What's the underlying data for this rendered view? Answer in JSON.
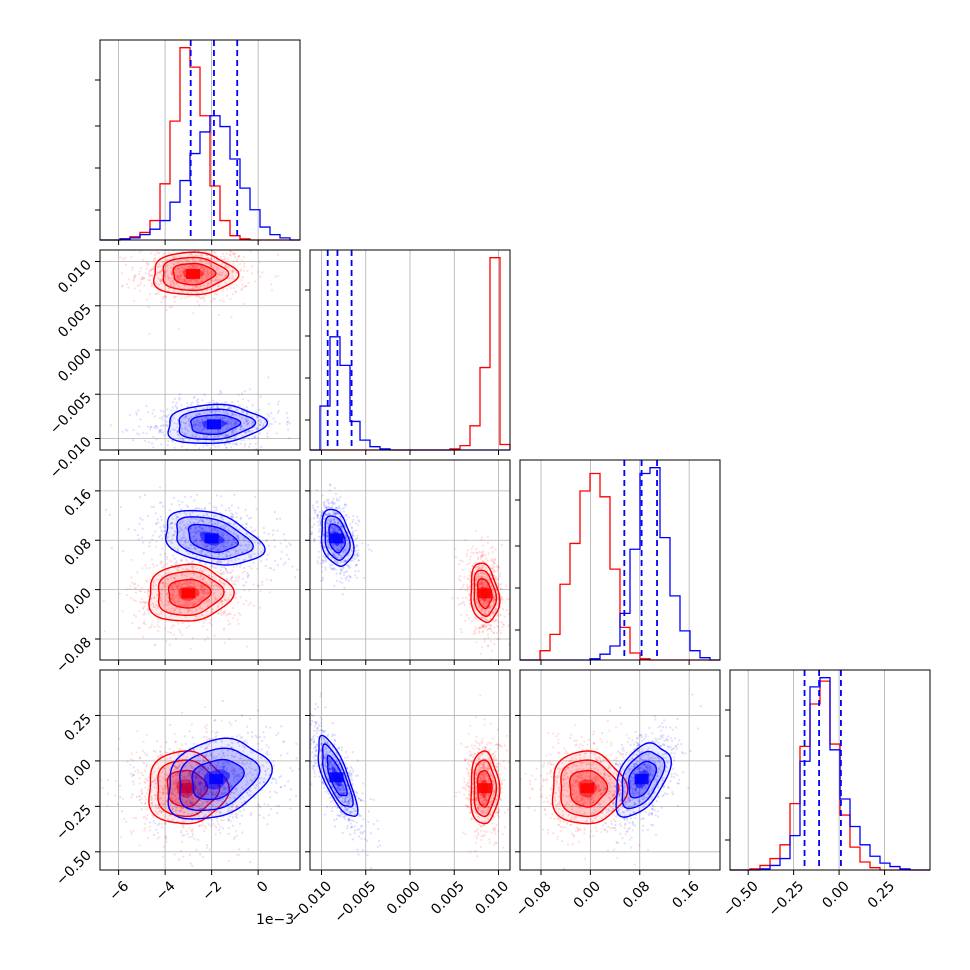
{
  "chart_data": {
    "type": "corner",
    "grid": true,
    "colors": {
      "red": "#ff0000",
      "blue": "#0000ff",
      "grid": "#b0b0b0"
    },
    "variables": [
      {
        "range": [
          -6.8,
          1.8
        ],
        "ticks": [
          -6,
          -4,
          -2,
          0
        ],
        "tick_labels": [
          "−6",
          "−4",
          "−2",
          "0"
        ],
        "offset_label": "1e−3"
      },
      {
        "range": [
          -0.0113,
          0.0113
        ],
        "ticks": [
          -0.01,
          -0.005,
          0.0,
          0.005,
          0.01
        ],
        "tick_labels": [
          "−0.010",
          "−0.005",
          "0.000",
          "0.005",
          "0.010"
        ]
      },
      {
        "range": [
          -0.114,
          0.21
        ],
        "ticks": [
          -0.08,
          0.0,
          0.08,
          0.16
        ],
        "tick_labels": [
          "−0.08",
          "0.00",
          "0.08",
          "0.16"
        ]
      },
      {
        "range": [
          -0.6,
          0.5
        ],
        "ticks": [
          -0.5,
          -0.25,
          0.0,
          0.25
        ],
        "tick_labels": [
          "−0.50",
          "−0.25",
          "0.00",
          "0.25"
        ]
      }
    ],
    "quantiles_blue": [
      [
        -2.9,
        -1.9,
        -0.9
      ],
      [
        -0.0093,
        -0.0082,
        -0.0066
      ],
      [
        0.055,
        0.083,
        0.108
      ],
      [
        -0.19,
        -0.11,
        0.01
      ]
    ],
    "series": [
      {
        "color": "red",
        "marginal_bins": [
          {
            "edges": [
              -6.8,
              -6.37,
              -5.94,
              -5.51,
              -5.08,
              -4.65,
              -4.22,
              -3.79,
              -3.36,
              -2.93,
              -2.5,
              -2.07,
              -1.64,
              -1.21,
              -0.78,
              -0.35,
              0.08,
              0.51,
              0.94,
              1.37,
              1.8
            ],
            "counts": [
              0,
              0,
              1,
              3,
              7,
              18,
              52,
              110,
              178,
              160,
              115,
              50,
              18,
              4,
              1,
              0,
              0,
              0,
              0,
              0
            ]
          },
          {
            "edges": [
              -0.0113,
              -0.01017,
              -0.00904,
              -0.00791,
              -0.00678,
              -0.00565,
              -0.00452,
              -0.00339,
              -0.00226,
              -0.00113,
              0.0,
              0.00113,
              0.00226,
              0.00339,
              0.00452,
              0.00565,
              0.00678,
              0.00791,
              0.00904,
              0.01017,
              0.0113
            ],
            "counts": [
              0,
              0,
              0,
              0,
              0,
              0,
              0,
              0,
              0,
              0,
              0,
              0,
              0,
              0,
              1,
              4,
              22,
              75,
              175,
              5
            ]
          },
          {
            "edges": [
              -0.114,
              -0.0978,
              -0.0816,
              -0.0654,
              -0.0492,
              -0.033,
              -0.0168,
              -0.0006,
              0.0156,
              0.0318,
              0.048,
              0.0642,
              0.0804,
              0.0966,
              0.1128,
              0.129,
              0.1452,
              0.1614,
              0.1776,
              0.1938,
              0.21
            ],
            "counts": [
              0,
              0,
              8,
              22,
              65,
              100,
              145,
              160,
              140,
              78,
              28,
              6,
              1,
              0,
              0,
              0,
              0,
              0,
              0,
              0
            ]
          },
          {
            "edges": [
              -0.6,
              -0.545,
              -0.49,
              -0.435,
              -0.38,
              -0.325,
              -0.27,
              -0.215,
              -0.16,
              -0.105,
              -0.05,
              0.005,
              0.06,
              0.115,
              0.17,
              0.225,
              0.28,
              0.335,
              0.39,
              0.445,
              0.5
            ],
            "counts": [
              0,
              0,
              1,
              4,
              10,
              22,
              58,
              108,
              145,
              165,
              110,
              48,
              20,
              7,
              2,
              0,
              0,
              0,
              0,
              0
            ]
          }
        ],
        "pair_contours": {
          "1-0": {
            "center": [
              -2.8,
              0.0086
            ],
            "sigma": [
              0.9,
              0.0012
            ],
            "rho": 0.0
          },
          "2-0": {
            "center": [
              -3.0,
              -0.006
            ],
            "sigma": [
              0.9,
              0.023
            ],
            "rho": 0.05
          },
          "2-1": {
            "center": [
              0.0084,
              -0.006
            ],
            "sigma": [
              0.0008,
              0.024
            ],
            "rho": -0.2
          },
          "3-0": {
            "center": [
              -3.1,
              -0.15
            ],
            "sigma": [
              0.85,
              0.1
            ],
            "rho": 0.0
          },
          "3-1": {
            "center": [
              0.0084,
              -0.15
            ],
            "sigma": [
              0.0008,
              0.1
            ],
            "rho": 0.0
          },
          "3-2": {
            "center": [
              -0.005,
              -0.15
            ],
            "sigma": [
              0.03,
              0.1
            ],
            "rho": 0.0
          }
        }
      },
      {
        "color": "blue",
        "marginal_bins": [
          {
            "edges": [
              -6.8,
              -6.37,
              -5.94,
              -5.51,
              -5.08,
              -4.65,
              -4.22,
              -3.79,
              -3.36,
              -2.93,
              -2.5,
              -2.07,
              -1.64,
              -1.21,
              -0.78,
              -0.35,
              0.08,
              0.51,
              0.94,
              1.37,
              1.8
            ],
            "counts": [
              0,
              0,
              1,
              2,
              5,
              10,
              18,
              35,
              55,
              80,
              100,
              115,
              105,
              75,
              48,
              28,
              12,
              5,
              2,
              0
            ]
          },
          {
            "edges": [
              -0.0113,
              -0.01017,
              -0.00904,
              -0.00791,
              -0.00678,
              -0.00565,
              -0.00452,
              -0.00339,
              -0.00226,
              -0.00113,
              0.0,
              0.00113,
              0.00226,
              0.00339,
              0.00452,
              0.00565,
              0.00678,
              0.00791,
              0.00904,
              0.01017,
              0.0113
            ],
            "counts": [
              0,
              40,
              103,
              77,
              26,
              9,
              3,
              1,
              0,
              0,
              0,
              0,
              0,
              0,
              0,
              0,
              0,
              0,
              0,
              0
            ]
          },
          {
            "edges": [
              -0.114,
              -0.0978,
              -0.0816,
              -0.0654,
              -0.0492,
              -0.033,
              -0.0168,
              -0.0006,
              0.0156,
              0.0318,
              0.048,
              0.0642,
              0.0804,
              0.0966,
              0.1128,
              0.129,
              0.1452,
              0.1614,
              0.1776,
              0.1938,
              0.21
            ],
            "counts": [
              0,
              0,
              0,
              0,
              0,
              0,
              0,
              1,
              5,
              12,
              40,
              95,
              160,
              165,
              105,
              55,
              25,
              8,
              2,
              0
            ]
          },
          {
            "edges": [
              -0.6,
              -0.545,
              -0.49,
              -0.435,
              -0.38,
              -0.325,
              -0.27,
              -0.215,
              -0.16,
              -0.105,
              -0.05,
              0.005,
              0.06,
              0.115,
              0.17,
              0.225,
              0.28,
              0.335,
              0.39,
              0.445,
              0.5
            ],
            "counts": [
              0,
              0,
              0,
              1,
              4,
              10,
              30,
              95,
              160,
              168,
              105,
              62,
              38,
              22,
              12,
              6,
              3,
              1,
              0,
              0
            ]
          }
        ],
        "pair_contours": {
          "1-0": {
            "center": [
              -1.9,
              -0.0084
            ],
            "sigma": [
              1.05,
              0.0011
            ],
            "rho": 0.1
          },
          "2-0": {
            "center": [
              -2.0,
              0.083
            ],
            "sigma": [
              1.05,
              0.022
            ],
            "rho": -0.35
          },
          "2-1": {
            "center": [
              -0.0083,
              0.083
            ],
            "sigma": [
              0.0009,
              0.023
            ],
            "rho": -0.3
          },
          "3-0": {
            "center": [
              -1.8,
              -0.1
            ],
            "sigma": [
              1.1,
              0.11
            ],
            "rho": 0.25
          },
          "3-1": {
            "center": [
              -0.0083,
              -0.09
            ],
            "sigma": [
              0.0011,
              0.11
            ],
            "rho": -0.75
          },
          "3-2": {
            "center": [
              0.083,
              -0.1
            ],
            "sigma": [
              0.022,
              0.1
            ],
            "rho": 0.45
          }
        }
      }
    ]
  }
}
